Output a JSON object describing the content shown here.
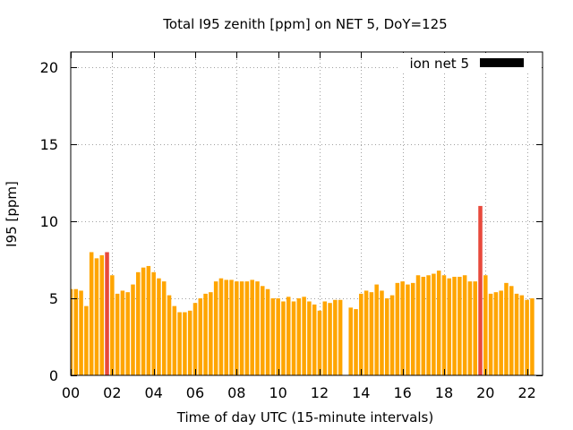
{
  "chart_data": {
    "type": "bar",
    "title": "Total I95 zenith [ppm] on NET 5, DoY=125",
    "xlabel": "Time of day UTC (15-minute intervals)",
    "ylabel": "I95 [ppm]",
    "ylim": [
      0,
      21
    ],
    "yticks": [
      0,
      5,
      10,
      15,
      20
    ],
    "xlim": [
      0,
      22.75
    ],
    "xticks": [
      "00",
      "02",
      "04",
      "06",
      "08",
      "10",
      "12",
      "14",
      "16",
      "18",
      "20",
      "22"
    ],
    "grid": true,
    "legend": {
      "entries": [
        "ion net 5"
      ],
      "placement": "top-right"
    },
    "colors": {
      "normal": "#ffa500",
      "highlight": "#e8493c",
      "legend_swatch": "#000000"
    },
    "interval_hours": 0.25,
    "series": [
      {
        "name": "ion net 5",
        "values": [
          5.6,
          5.6,
          5.5,
          4.5,
          8.0,
          7.6,
          7.8,
          8.0,
          6.5,
          5.3,
          5.5,
          5.4,
          5.9,
          6.7,
          7.0,
          7.1,
          6.7,
          6.3,
          6.1,
          5.2,
          4.5,
          4.1,
          4.1,
          4.2,
          4.7,
          5.0,
          5.3,
          5.4,
          6.1,
          6.3,
          6.2,
          6.2,
          6.1,
          6.1,
          6.1,
          6.2,
          6.1,
          5.8,
          5.6,
          5.0,
          5.0,
          4.8,
          5.1,
          4.8,
          5.0,
          5.1,
          4.8,
          4.6,
          4.2,
          4.8,
          4.7,
          4.9,
          4.9,
          0.0,
          4.4,
          4.3,
          5.3,
          5.5,
          5.4,
          5.9,
          5.5,
          5.0,
          5.2,
          6.0,
          6.1,
          5.9,
          6.0,
          6.5,
          6.4,
          6.5,
          6.6,
          6.8,
          6.5,
          6.3,
          6.4,
          6.4,
          6.5,
          6.1,
          6.1,
          11.0,
          6.5,
          5.3,
          5.4,
          5.5,
          6.0,
          5.8,
          5.3,
          5.2,
          4.9,
          5.0
        ]
      }
    ],
    "highlight_indices": [
      7,
      79
    ]
  }
}
